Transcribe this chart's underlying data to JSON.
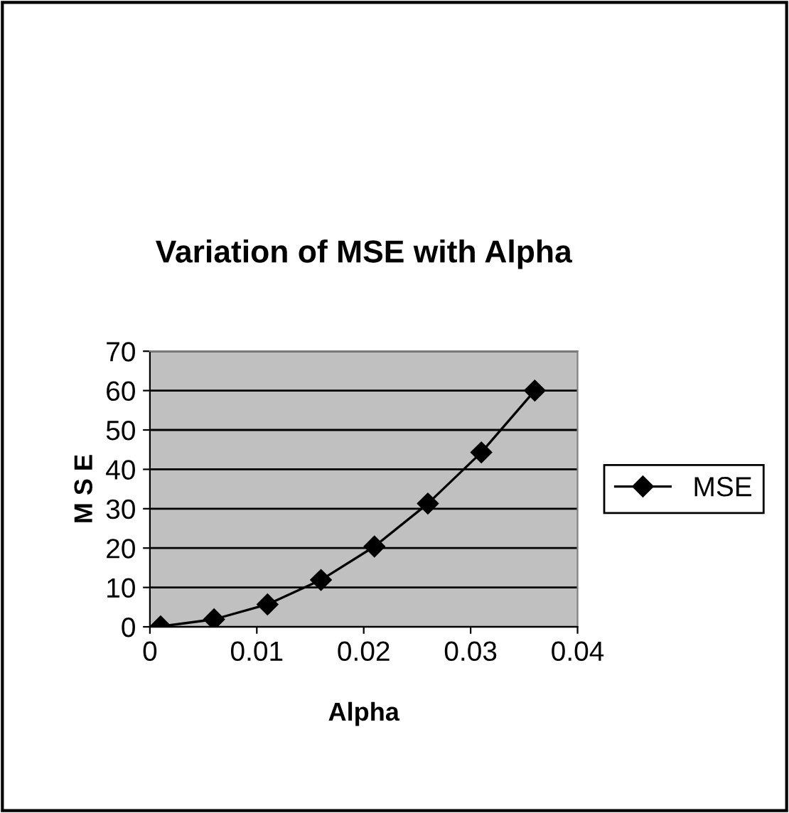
{
  "chart_data": {
    "type": "line",
    "title": "Variation of MSE with Alpha",
    "xlabel": "Alpha",
    "ylabel": "M S E",
    "series": [
      {
        "name": "MSE",
        "color": "#000000",
        "x": [
          0.001,
          0.006,
          0.011,
          0.016,
          0.021,
          0.026,
          0.031,
          0.036
        ],
        "values": [
          0.1,
          1.9,
          5.7,
          11.9,
          20.4,
          31.3,
          44.3,
          60.0
        ]
      }
    ],
    "xlim": [
      0,
      0.04
    ],
    "xticks": [
      0,
      0.01,
      0.02,
      0.03,
      0.04
    ],
    "ylim": [
      0,
      70
    ],
    "yticks": [
      0,
      10,
      20,
      30,
      40,
      50,
      60,
      70
    ],
    "grid": "y",
    "legend": "right",
    "marker": "diamond",
    "line_style": "solid"
  }
}
